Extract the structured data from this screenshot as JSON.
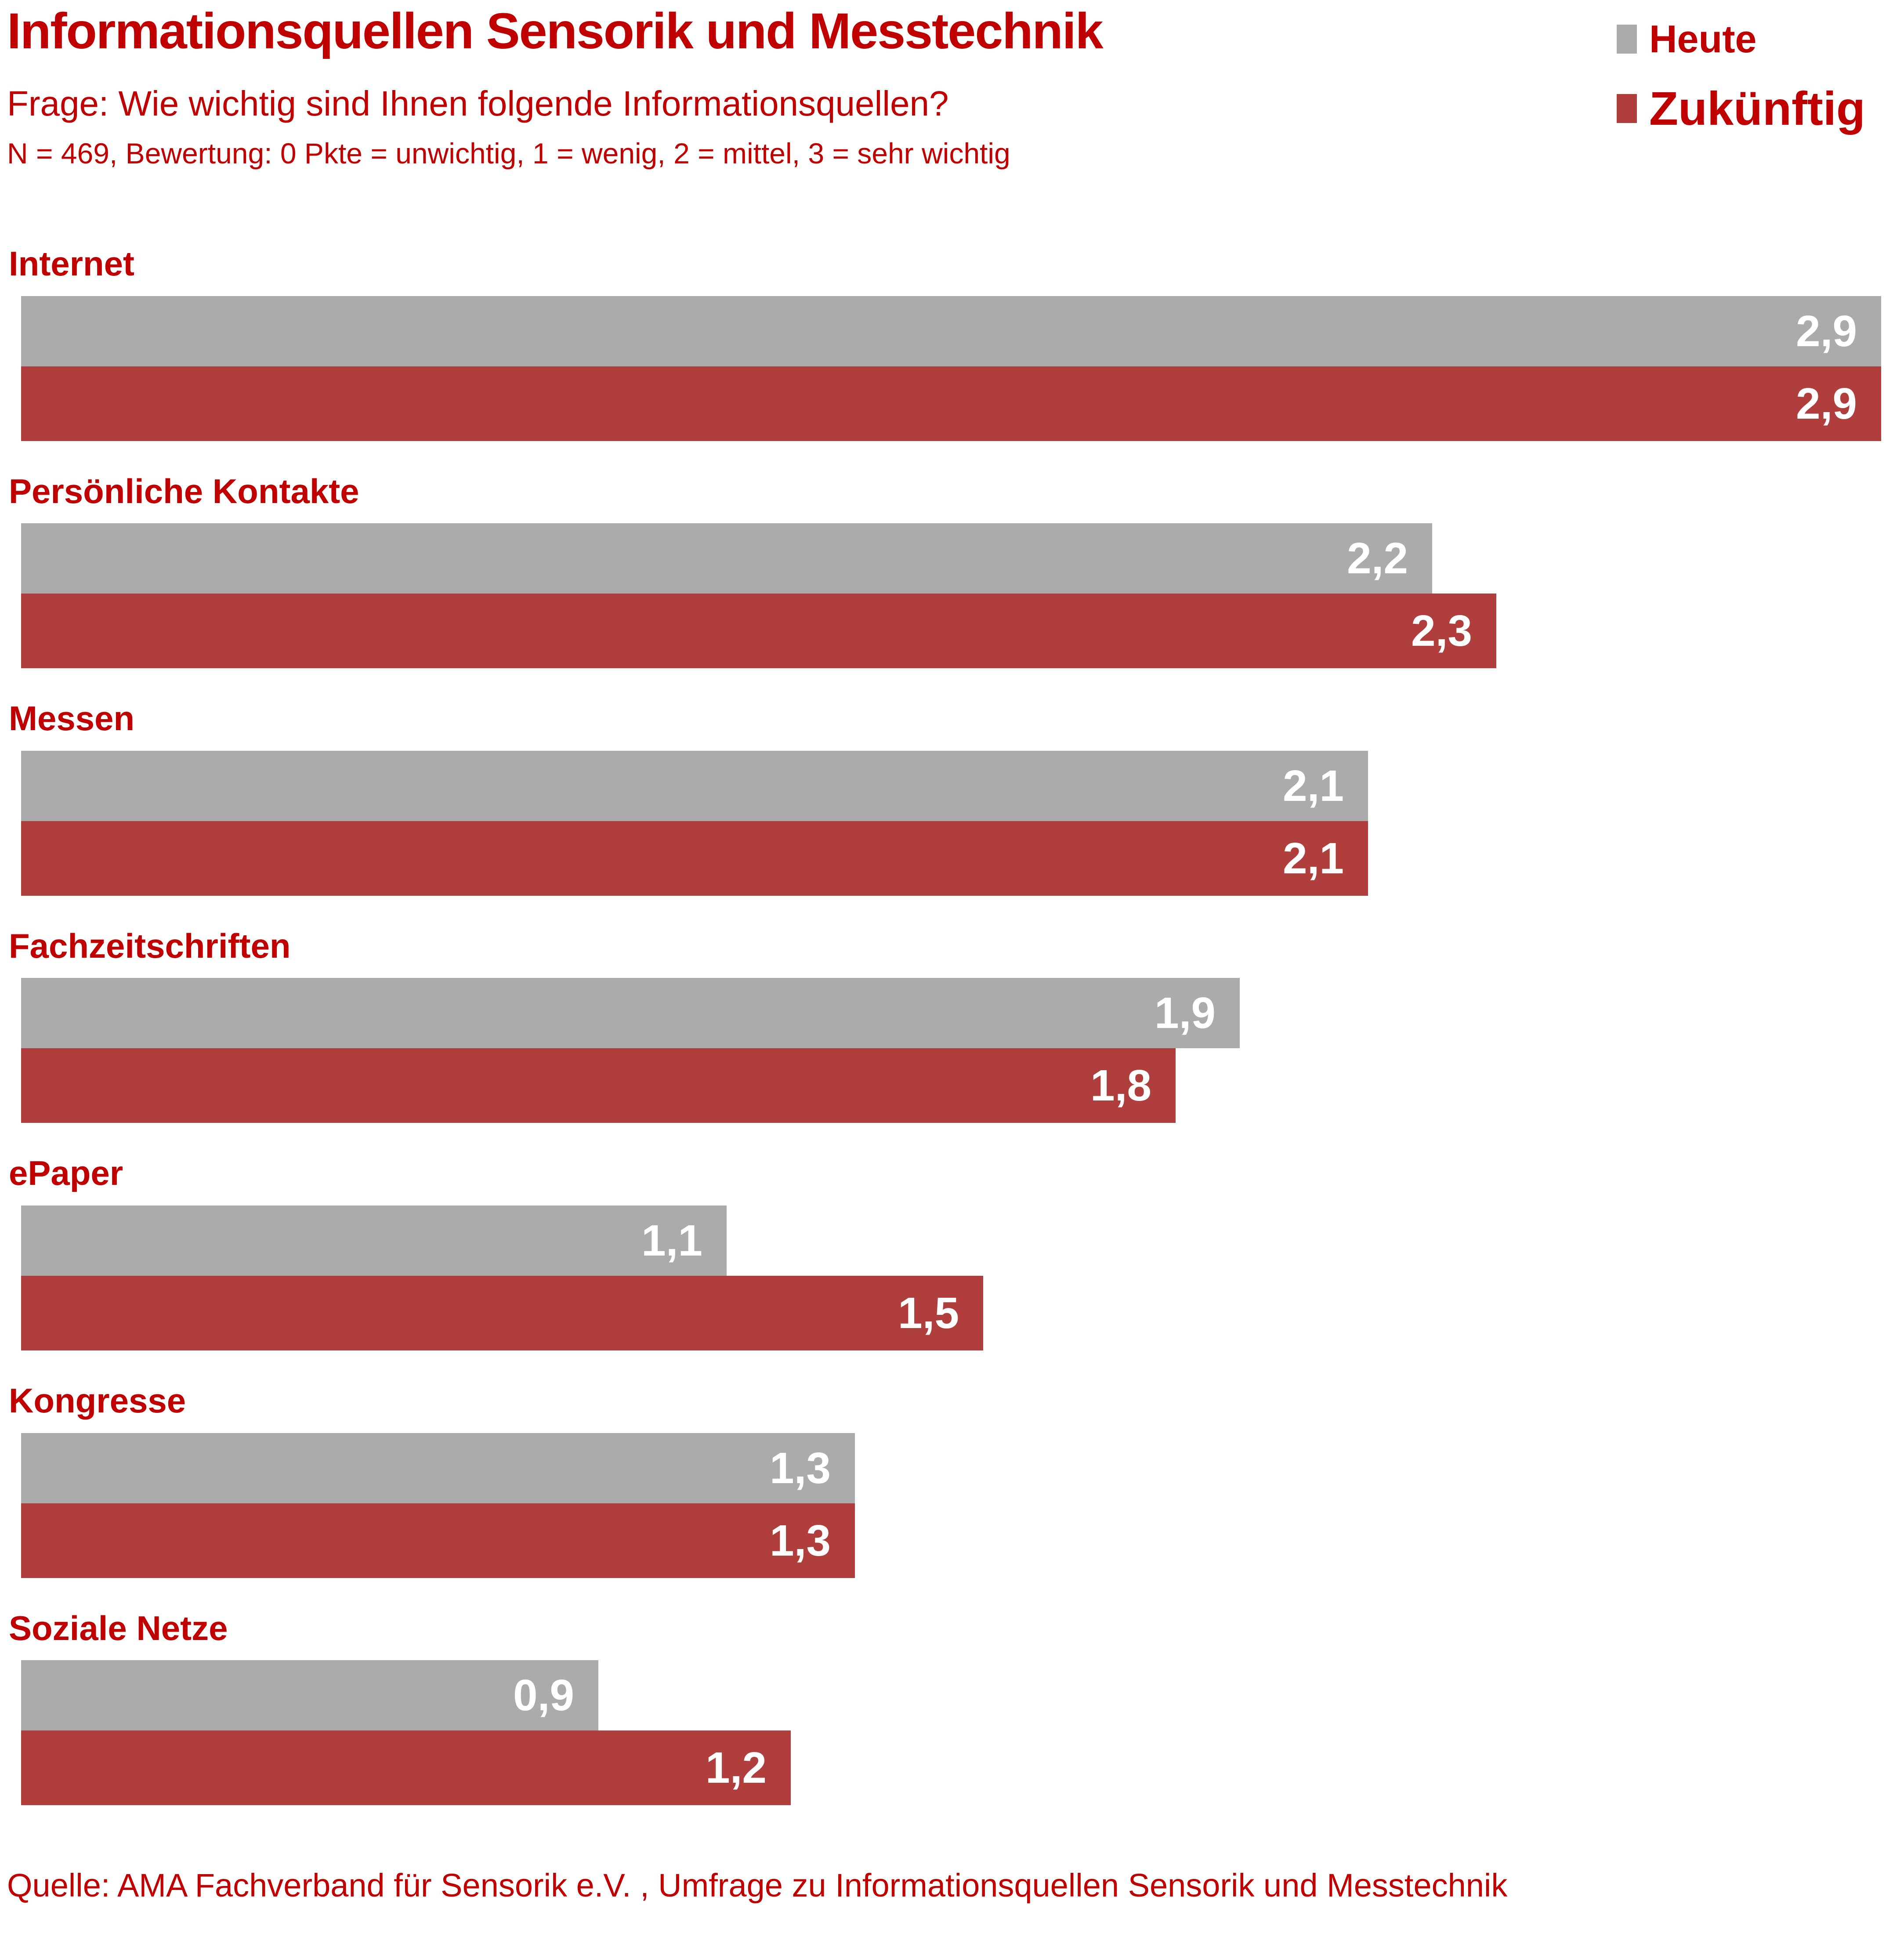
{
  "title": "Informationsquellen Sensorik und Messtechnik",
  "subtitle": "Frage: Wie wichtig sind Ihnen folgende Informationsquellen?",
  "note": "N = 469,  Bewertung:  0 Pkte =  unwichtig, 1 = wenig, 2 = mittel, 3 = sehr wichtig",
  "footer": "Quelle: AMA Fachverband für Sensorik e.V. ,  Umfrage zu Informationsquellen Sensorik und Messtechnik",
  "legend": {
    "heute": {
      "label": "Heute",
      "color": "#ababab"
    },
    "zukuenftig": {
      "label": "Zukünftig",
      "color": "#b03e3c"
    }
  },
  "colors": {
    "text_red": "#c00000",
    "bar_gray": "#ababab",
    "bar_red": "#b03e3c",
    "value_text": "#ffffff",
    "background": "#ffffff"
  },
  "chart_data": {
    "type": "bar",
    "orientation": "horizontal",
    "title": "Informationsquellen Sensorik und Messtechnik",
    "xlabel": "",
    "ylabel": "",
    "xlim": [
      0,
      3
    ],
    "grid": false,
    "legend_position": "top-right",
    "categories": [
      "Internet",
      "Persönliche Kontakte",
      "Messen",
      "Fachzeitschriften",
      "ePaper",
      "Kongresse",
      "Soziale Netze"
    ],
    "series": [
      {
        "name": "Heute",
        "color": "#ababab",
        "values": [
          2.9,
          2.2,
          2.1,
          1.9,
          1.1,
          1.3,
          0.9
        ],
        "labels": [
          "2,9",
          "2,2",
          "2,1",
          "1,9",
          "1,1",
          "1,3",
          "0,9"
        ]
      },
      {
        "name": "Zukünftig",
        "color": "#b03e3c",
        "values": [
          2.9,
          2.3,
          2.1,
          1.8,
          1.5,
          1.3,
          1.2
        ],
        "labels": [
          "2,9",
          "2,3",
          "2,1",
          "1,8",
          "1,5",
          "1,3",
          "1,2"
        ]
      }
    ]
  }
}
